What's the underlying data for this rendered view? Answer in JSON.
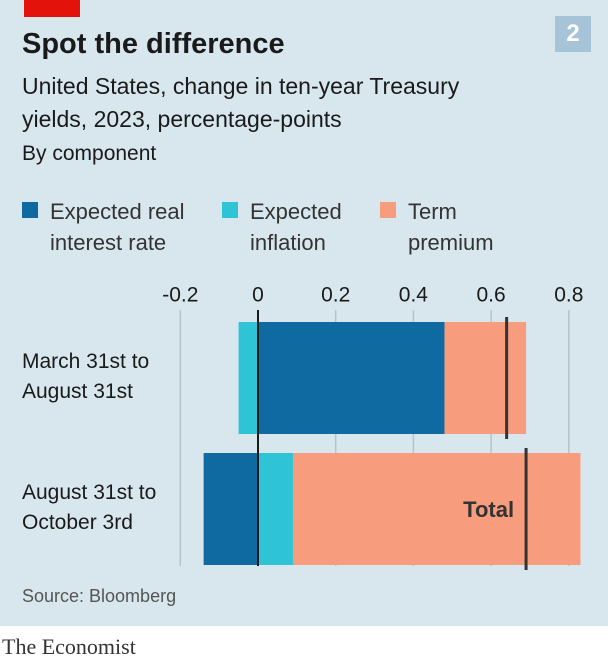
{
  "chart_data": {
    "type": "bar",
    "orientation": "horizontal",
    "stacked": true,
    "badge": "2",
    "title": "Spot the difference",
    "subtitle": "United States, change in ten-year Treasury yields, 2023, percentage-points",
    "subtitle2": "By component",
    "categories": [
      "March 31st to August 31st",
      "August 31st to October 3rd"
    ],
    "series": [
      {
        "name": "Expected real interest rate",
        "color": "#0e6aa0",
        "values": [
          0.48,
          -0.14
        ]
      },
      {
        "name": "Expected inflation",
        "color": "#2ec4d6",
        "values": [
          -0.05,
          0.09
        ]
      },
      {
        "name": "Term premium",
        "color": "#f79c7d",
        "values": [
          0.21,
          0.74
        ]
      }
    ],
    "totals": [
      0.64,
      0.69
    ],
    "total_label": "Total",
    "xlim": [
      -0.2,
      0.8
    ],
    "xticks": [
      -0.2,
      0,
      0.2,
      0.4,
      0.6,
      0.8
    ],
    "grid": true,
    "source": "Source: Bloomberg",
    "brand": "The Economist"
  }
}
